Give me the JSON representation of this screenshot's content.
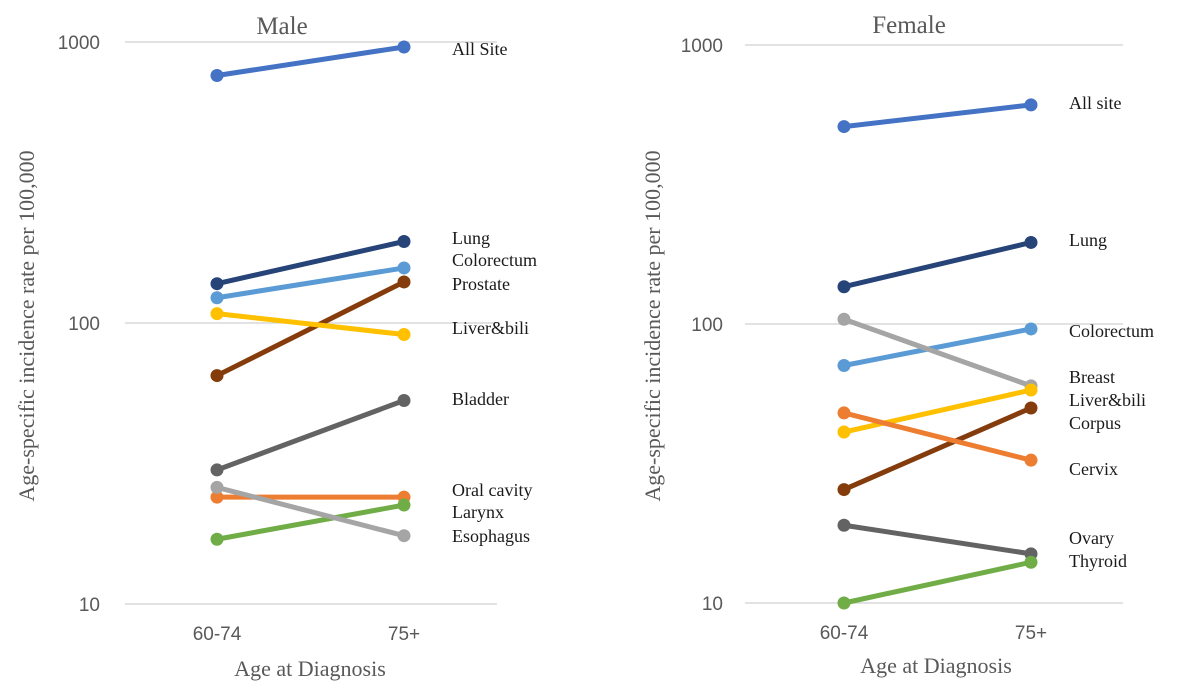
{
  "chart_data": [
    {
      "type": "line",
      "title": "Male",
      "xlabel": "Age at Diagnosis",
      "ylabel": "Age-specific incidence rate per 100,000",
      "y_scale": "log",
      "ylim": [
        10,
        1000
      ],
      "yticks": [
        "10",
        "100",
        "1000"
      ],
      "categories": [
        "60-74",
        "75+"
      ],
      "grid": "horizontal",
      "legend": "inline labels at right end of lines",
      "series": [
        {
          "name": "All Site",
          "values": [
            760,
            960
          ],
          "color": "#4472c4"
        },
        {
          "name": "Lung",
          "values": [
            138,
            195
          ],
          "color": "#264478"
        },
        {
          "name": "Colorectum",
          "values": [
            123,
            157
          ],
          "color": "#5b9bd5"
        },
        {
          "name": "Prostate",
          "values": [
            65,
            140
          ],
          "color": "#843c0c"
        },
        {
          "name": "Liver&bili",
          "values": [
            108,
            91
          ],
          "color": "#ffc000"
        },
        {
          "name": "Bladder",
          "values": [
            30,
            53
          ],
          "color": "#636363"
        },
        {
          "name": "Oral cavity",
          "values": [
            24,
            24
          ],
          "color": "#ed7d31"
        },
        {
          "name": "Larynx",
          "values": [
            17,
            22.5
          ],
          "color": "#70ad47"
        },
        {
          "name": "Esophagus",
          "values": [
            26,
            17.5
          ],
          "color": "#a5a5a5"
        }
      ]
    },
    {
      "type": "line",
      "title": "Female",
      "xlabel": "Age at Diagnosis",
      "ylabel": "Age-specific incidence rate per 100,000",
      "y_scale": "log",
      "ylim": [
        10,
        1000
      ],
      "yticks": [
        "10",
        "100",
        "1000"
      ],
      "categories": [
        "60-74",
        "75+"
      ],
      "grid": "horizontal",
      "legend": "inline labels at right end of lines",
      "series": [
        {
          "name": "All site",
          "values": [
            510,
            610
          ],
          "color": "#4472c4"
        },
        {
          "name": "Lung",
          "values": [
            136,
            196
          ],
          "color": "#264478"
        },
        {
          "name": "Colorectum",
          "values": [
            71,
            96
          ],
          "color": "#5b9bd5"
        },
        {
          "name": "Breast",
          "values": [
            104,
            60
          ],
          "color": "#a5a5a5"
        },
        {
          "name": "Liver&bili",
          "values": [
            25.5,
            50
          ],
          "color": "#843c0c"
        },
        {
          "name": "Corpus",
          "values": [
            41,
            58
          ],
          "color": "#ffc000"
        },
        {
          "name": "Cervix",
          "values": [
            48,
            32.5
          ],
          "color": "#ed7d31"
        },
        {
          "name": "Ovary",
          "values": [
            19,
            15
          ],
          "color": "#636363"
        },
        {
          "name": "Thyroid",
          "values": [
            10,
            14
          ],
          "color": "#70ad47"
        }
      ]
    }
  ]
}
